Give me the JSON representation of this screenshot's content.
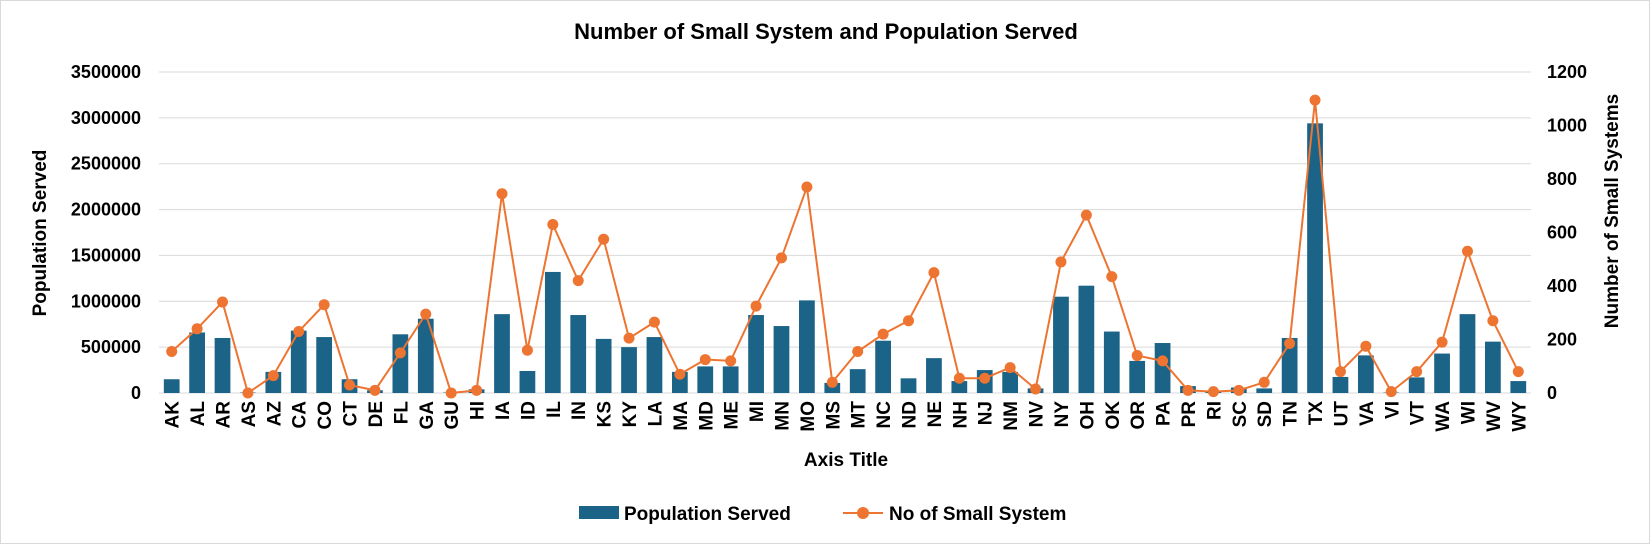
{
  "chart_data": {
    "type": "bar",
    "title": "Number of Small System and Population Served",
    "xlabel": "Axis Title",
    "ylabel": "Population Served",
    "y2label": "Number of Small Systems",
    "ylim": [
      0,
      3500000
    ],
    "y2lim": [
      0,
      1200
    ],
    "yticks": [
      "0",
      "500000",
      "1000000",
      "1500000",
      "2000000",
      "2500000",
      "3000000",
      "3500000"
    ],
    "y2ticks": [
      "0",
      "200",
      "400",
      "600",
      "800",
      "1000",
      "1200"
    ],
    "grid": true,
    "legend_position": "bottom",
    "colors": {
      "bar": "#1b6387",
      "line": "#ed7431",
      "grid": "#d9d9d9"
    },
    "categories": [
      "AK",
      "AL",
      "AR",
      "AS",
      "AZ",
      "CA",
      "CO",
      "CT",
      "DE",
      "FL",
      "GA",
      "GU",
      "HI",
      "IA",
      "ID",
      "IL",
      "IN",
      "KS",
      "KY",
      "LA",
      "MA",
      "MD",
      "ME",
      "MI",
      "MN",
      "MO",
      "MS",
      "MT",
      "NC",
      "ND",
      "NE",
      "NH",
      "NJ",
      "NM",
      "NV",
      "NY",
      "OH",
      "OK",
      "OR",
      "PA",
      "PR",
      "RI",
      "SC",
      "SD",
      "TN",
      "TX",
      "UT",
      "VA",
      "VI",
      "VT",
      "WA",
      "WI",
      "WV",
      "WY"
    ],
    "series": [
      {
        "name": "Population Served",
        "type": "bar",
        "axis": "left",
        "values": [
          150000,
          660000,
          600000,
          5000,
          230000,
          680000,
          610000,
          150000,
          30000,
          640000,
          810000,
          5000,
          40000,
          860000,
          240000,
          1320000,
          850000,
          590000,
          500000,
          610000,
          230000,
          290000,
          290000,
          850000,
          730000,
          1010000,
          110000,
          260000,
          570000,
          160000,
          380000,
          130000,
          250000,
          230000,
          50000,
          1050000,
          1170000,
          670000,
          350000,
          545000,
          75000,
          20000,
          60000,
          50000,
          600000,
          2940000,
          175000,
          410000,
          5000,
          170000,
          430000,
          860000,
          560000,
          130000
        ]
      },
      {
        "name": "No of Small System",
        "type": "line",
        "axis": "right",
        "values": [
          155,
          240,
          340,
          0,
          65,
          230,
          330,
          30,
          10,
          150,
          295,
          0,
          10,
          745,
          160,
          630,
          420,
          575,
          205,
          265,
          70,
          125,
          120,
          325,
          505,
          770,
          40,
          155,
          220,
          270,
          450,
          55,
          55,
          95,
          15,
          490,
          665,
          435,
          140,
          120,
          10,
          5,
          10,
          40,
          185,
          1095,
          80,
          175,
          5,
          80,
          190,
          530,
          270,
          80
        ]
      }
    ]
  }
}
